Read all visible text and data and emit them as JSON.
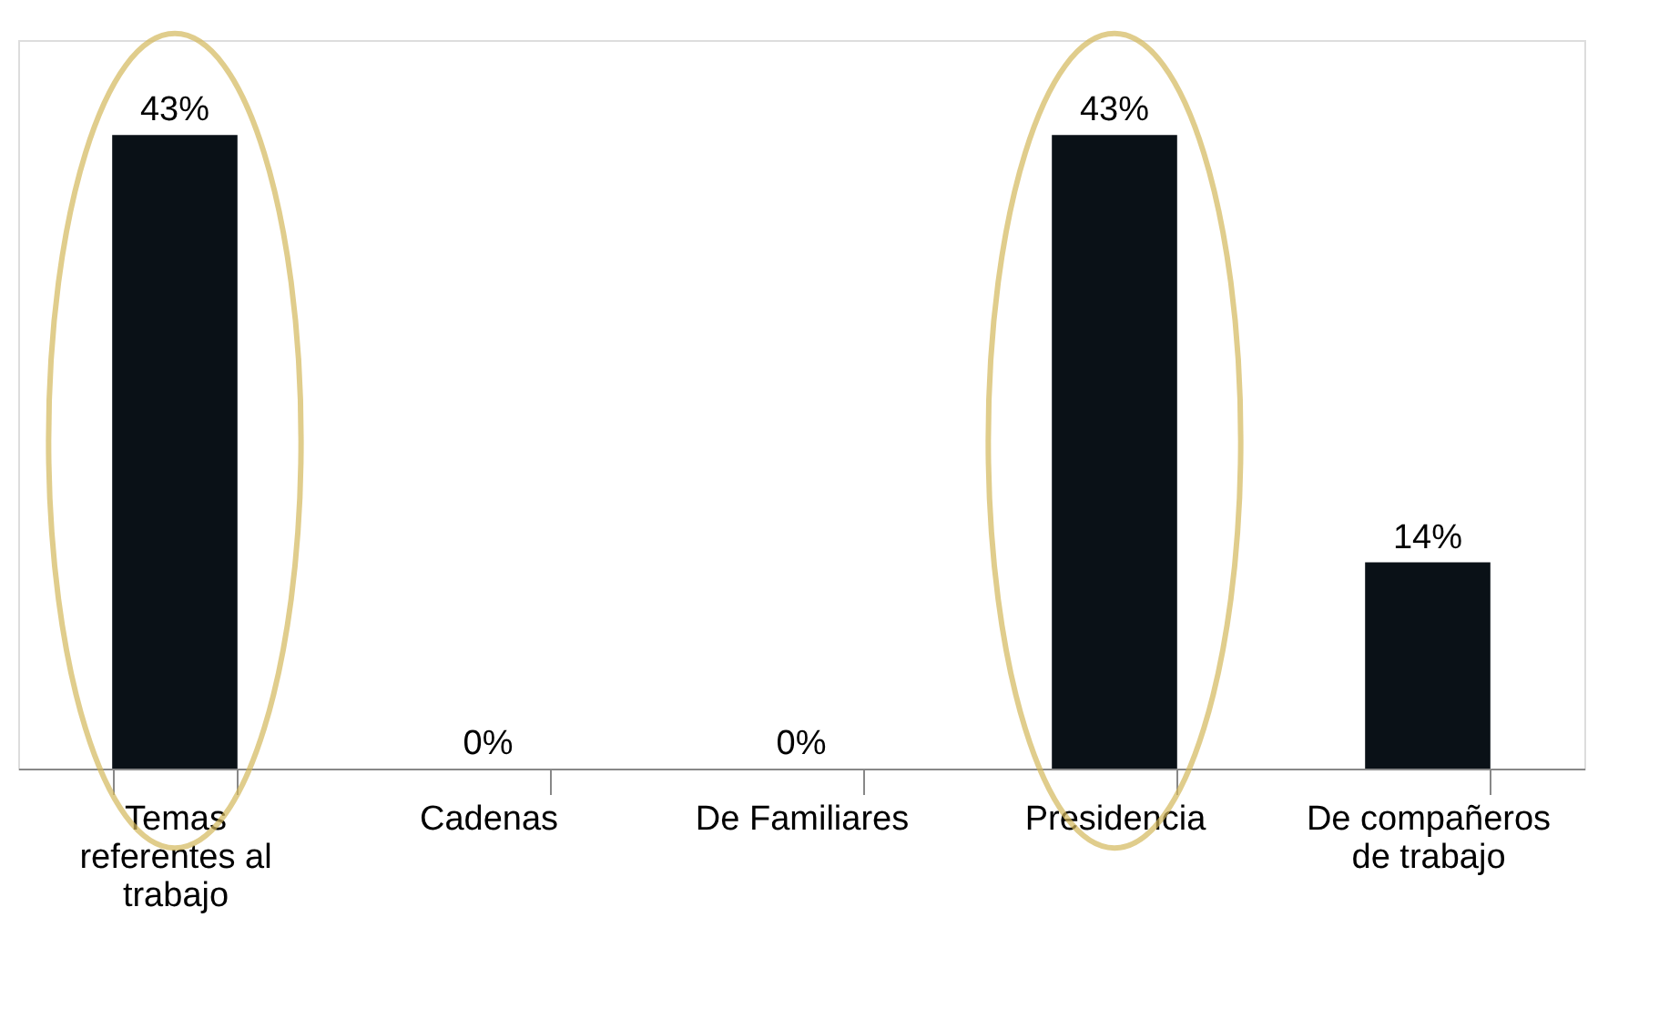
{
  "chart_data": {
    "type": "bar",
    "categories": [
      "Temas referentes al trabajo",
      "Cadenas",
      "De Familiares",
      "Presidencia",
      "De compañeros de trabajo"
    ],
    "values": [
      43,
      0,
      0,
      43,
      14
    ],
    "value_labels": [
      "43%",
      "0%",
      "0%",
      "43%",
      "14%"
    ],
    "color": "#0a1117",
    "grid": false
  }
}
